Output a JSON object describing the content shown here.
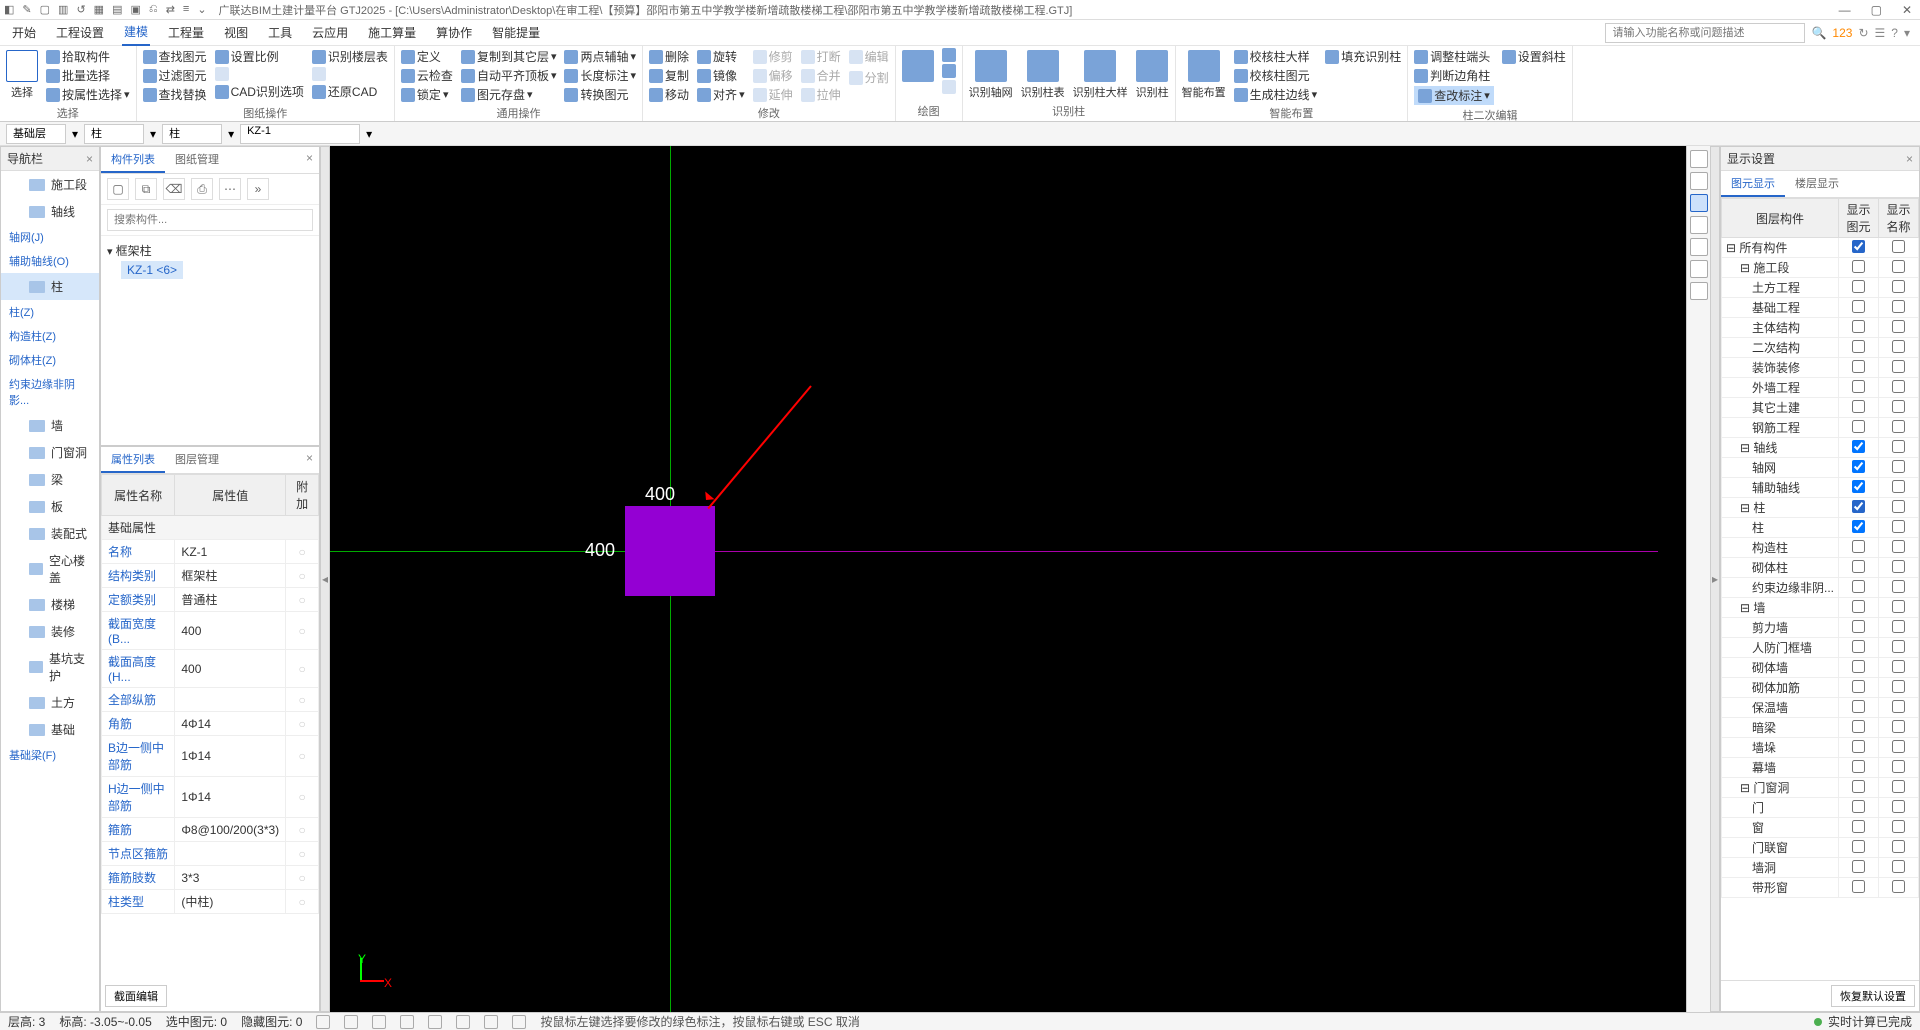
{
  "title": "广联达BIM土建计量平台 GTJ2025 - [C:\\Users\\Administrator\\Desktop\\在审工程\\【预算】邵阳市第五中学教学楼新增疏散楼梯工程\\邵阳市第五中学教学楼新增疏散楼梯工程.GTJ]",
  "menu": {
    "tabs": [
      "开始",
      "工程设置",
      "建模",
      "工程量",
      "视图",
      "工具",
      "云应用",
      "施工算量",
      "算协作",
      "智能提量"
    ],
    "active": 2,
    "search_ph": "请输入功能名称或问题描述",
    "badge": "123"
  },
  "ribbon": {
    "groups": [
      {
        "label": "选择",
        "big": "选择",
        "cols": [
          [
            "拾取构件",
            "批量选择",
            "按属性选择"
          ]
        ]
      },
      {
        "label": "",
        "cols": [
          [
            "查找图元",
            "过滤图元",
            "查找替换"
          ],
          [
            "设置比例",
            "",
            "CAD识别选项"
          ],
          [
            "识别楼层表",
            "",
            "还原CAD"
          ]
        ],
        "sublabel": "图纸操作"
      },
      {
        "label": "通用操作",
        "cols": [
          [
            "定义",
            "云检查",
            "锁定"
          ],
          [
            "复制到其它层",
            "自动平齐顶板",
            "图元存盘"
          ],
          [
            "两点辅轴",
            "长度标注",
            "转换图元"
          ]
        ]
      },
      {
        "label": "修改",
        "cols": [
          [
            "删除",
            "复制",
            "移动"
          ],
          [
            "旋转",
            "镜像",
            "对齐"
          ],
          [
            "修剪",
            "偏移",
            "延伸"
          ],
          [
            "打断",
            "合并",
            "拉伸"
          ],
          [
            "编辑",
            "",
            "分割"
          ]
        ]
      },
      {
        "label": "绘图",
        "big": "",
        "cols": [
          [
            " ",
            " ",
            " "
          ]
        ]
      },
      {
        "label": "识别柱",
        "bigs": [
          "识别轴网",
          "识别柱表",
          "识别柱大样",
          "识别柱"
        ]
      },
      {
        "label": "智能布置",
        "big": "智能布置",
        "cols": [
          [
            "校核柱大样",
            "校核柱图元",
            "生成柱边线"
          ],
          [
            "填充识别柱",
            "",
            ""
          ]
        ]
      },
      {
        "label": "柱二次编辑",
        "cols": [
          [
            "调整柱端头",
            "判断边角柱",
            "查改标注"
          ],
          [
            "设置斜柱",
            "",
            ""
          ]
        ],
        "highlight": "查改标注"
      }
    ]
  },
  "filter": {
    "layer": "基础层",
    "cat": "柱",
    "sub": "柱",
    "comp": "KZ-1"
  },
  "nav": {
    "title": "导航栏",
    "items": [
      {
        "type": "item",
        "label": "施工段",
        "icon": true
      },
      {
        "type": "item",
        "label": "轴线",
        "icon": true
      },
      {
        "type": "grp",
        "label": "轴网(J)"
      },
      {
        "type": "grp",
        "label": "辅助轴线(O)"
      },
      {
        "type": "item",
        "label": "柱",
        "icon": true,
        "sel": true
      },
      {
        "type": "grp",
        "label": "柱(Z)"
      },
      {
        "type": "grp",
        "label": "构造柱(Z)"
      },
      {
        "type": "grp",
        "label": "砌体柱(Z)"
      },
      {
        "type": "grp",
        "label": "约束边缘非阴影..."
      },
      {
        "type": "item",
        "label": "墙",
        "icon": true
      },
      {
        "type": "item",
        "label": "门窗洞",
        "icon": true
      },
      {
        "type": "item",
        "label": "梁",
        "icon": true
      },
      {
        "type": "item",
        "label": "板",
        "icon": true
      },
      {
        "type": "item",
        "label": "装配式",
        "icon": true
      },
      {
        "type": "item",
        "label": "空心楼盖",
        "icon": true
      },
      {
        "type": "item",
        "label": "楼梯",
        "icon": true
      },
      {
        "type": "item",
        "label": "装修",
        "icon": true
      },
      {
        "type": "item",
        "label": "基坑支护",
        "icon": true
      },
      {
        "type": "item",
        "label": "土方",
        "icon": true
      },
      {
        "type": "item",
        "label": "基础",
        "icon": true
      },
      {
        "type": "grp",
        "label": "基础梁(F)"
      }
    ]
  },
  "components": {
    "tabs": [
      "构件列表",
      "图纸管理"
    ],
    "active": 0,
    "search_ph": "搜索构件...",
    "root": "框架柱",
    "leaf": "KZ-1 <6>"
  },
  "props": {
    "tabs": [
      "属性列表",
      "图层管理"
    ],
    "active": 0,
    "headers": [
      "属性名称",
      "属性值",
      "附加"
    ],
    "section": "基础属性",
    "rows": [
      {
        "name": "名称",
        "val": "KZ-1"
      },
      {
        "name": "结构类别",
        "val": "框架柱"
      },
      {
        "name": "定额类别",
        "val": "普通柱"
      },
      {
        "name": "截面宽度(B...",
        "val": "400"
      },
      {
        "name": "截面高度(H...",
        "val": "400"
      },
      {
        "name": "全部纵筋",
        "val": ""
      },
      {
        "name": "角筋",
        "val": "4Φ14"
      },
      {
        "name": "B边一侧中部筋",
        "val": "1Φ14"
      },
      {
        "name": "H边一侧中部筋",
        "val": "1Φ14"
      },
      {
        "name": "箍筋",
        "val": "Φ8@100/200(3*3)"
      },
      {
        "name": "节点区箍筋",
        "val": ""
      },
      {
        "name": "箍筋肢数",
        "val": "3*3"
      },
      {
        "name": "柱类型",
        "val": "(中柱)"
      }
    ],
    "footer_btn": "截面编辑"
  },
  "canvas": {
    "dim1": "400",
    "dim2": "400",
    "ylabel": "Y",
    "xlabel": "X"
  },
  "display": {
    "title": "显示设置",
    "tabs": [
      "图元显示",
      "楼层显示"
    ],
    "active": 0,
    "headers": [
      "图层构件",
      "显示图元",
      "显示名称"
    ],
    "restore": "恢复默认设置",
    "rows": [
      {
        "label": "所有构件",
        "indent": 0,
        "c1": "p",
        "c2": false
      },
      {
        "label": "施工段",
        "indent": 1,
        "c1": false,
        "c2": false
      },
      {
        "label": "土方工程",
        "indent": 2,
        "c1": false,
        "c2": false
      },
      {
        "label": "基础工程",
        "indent": 2,
        "c1": false,
        "c2": false
      },
      {
        "label": "主体结构",
        "indent": 2,
        "c1": false,
        "c2": false
      },
      {
        "label": "二次结构",
        "indent": 2,
        "c1": false,
        "c2": false
      },
      {
        "label": "装饰装修",
        "indent": 2,
        "c1": false,
        "c2": false
      },
      {
        "label": "外墙工程",
        "indent": 2,
        "c1": false,
        "c2": false
      },
      {
        "label": "其它土建",
        "indent": 2,
        "c1": false,
        "c2": false
      },
      {
        "label": "钢筋工程",
        "indent": 2,
        "c1": false,
        "c2": false
      },
      {
        "label": "轴线",
        "indent": 1,
        "c1": true,
        "c2": false
      },
      {
        "label": "轴网",
        "indent": 2,
        "c1": true,
        "c2": false
      },
      {
        "label": "辅助轴线",
        "indent": 2,
        "c1": true,
        "c2": false
      },
      {
        "label": "柱",
        "indent": 1,
        "c1": "p",
        "c2": false
      },
      {
        "label": "柱",
        "indent": 2,
        "c1": true,
        "c2": false
      },
      {
        "label": "构造柱",
        "indent": 2,
        "c1": false,
        "c2": false
      },
      {
        "label": "砌体柱",
        "indent": 2,
        "c1": false,
        "c2": false
      },
      {
        "label": "约束边缘非阴...",
        "indent": 2,
        "c1": false,
        "c2": false
      },
      {
        "label": "墙",
        "indent": 1,
        "c1": false,
        "c2": false
      },
      {
        "label": "剪力墙",
        "indent": 2,
        "c1": false,
        "c2": false
      },
      {
        "label": "人防门框墙",
        "indent": 2,
        "c1": false,
        "c2": false
      },
      {
        "label": "砌体墙",
        "indent": 2,
        "c1": false,
        "c2": false
      },
      {
        "label": "砌体加筋",
        "indent": 2,
        "c1": false,
        "c2": false
      },
      {
        "label": "保温墙",
        "indent": 2,
        "c1": false,
        "c2": false
      },
      {
        "label": "暗梁",
        "indent": 2,
        "c1": false,
        "c2": false
      },
      {
        "label": "墙垛",
        "indent": 2,
        "c1": false,
        "c2": false
      },
      {
        "label": "幕墙",
        "indent": 2,
        "c1": false,
        "c2": false
      },
      {
        "label": "门窗洞",
        "indent": 1,
        "c1": false,
        "c2": false
      },
      {
        "label": "门",
        "indent": 2,
        "c1": false,
        "c2": false
      },
      {
        "label": "窗",
        "indent": 2,
        "c1": false,
        "c2": false
      },
      {
        "label": "门联窗",
        "indent": 2,
        "c1": false,
        "c2": false
      },
      {
        "label": "墙洞",
        "indent": 2,
        "c1": false,
        "c2": false
      },
      {
        "label": "带形窗",
        "indent": 2,
        "c1": false,
        "c2": false
      }
    ]
  },
  "status": {
    "layer_lbl": "层高: ",
    "layer": "3",
    "elev_lbl": "标高: ",
    "elev": "-3.05~-0.05",
    "sel_lbl": "选中图元: ",
    "sel": "0",
    "hid_lbl": "隐藏图元: ",
    "hid": "0",
    "hint": "按鼠标左键选择要修改的绿色标注，按鼠标右键或 ESC 取消",
    "done": "实时计算已完成"
  }
}
